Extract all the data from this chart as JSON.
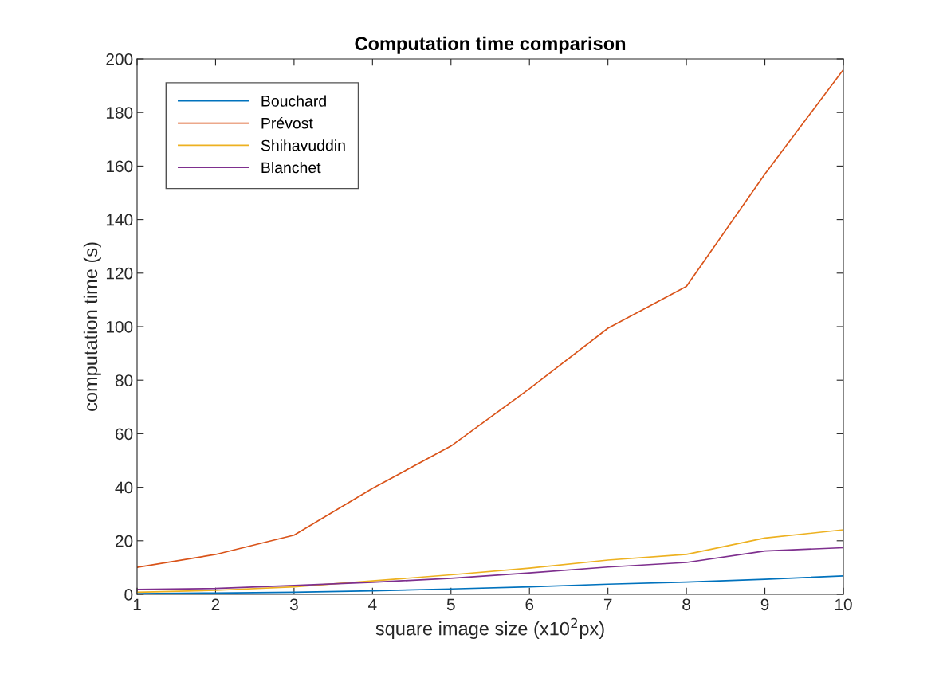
{
  "chart_data": {
    "type": "line",
    "title": "Computation time comparison",
    "xlabel": "square image size (x10$^{2}$px)",
    "ylabel": "computation time (s)",
    "x": [
      1,
      2,
      3,
      4,
      5,
      6,
      7,
      8,
      9,
      10
    ],
    "series": [
      {
        "name": "Bouchard",
        "color": "#0072bd",
        "values": [
          0.3,
          0.5,
          0.8,
          1.3,
          2.0,
          2.8,
          3.8,
          4.6,
          5.6,
          6.9
        ]
      },
      {
        "name": "Prévost",
        "color": "#d95319",
        "values": [
          10.1,
          14.9,
          22.1,
          39.6,
          55.4,
          76.8,
          99.4,
          115,
          157,
          196
        ]
      },
      {
        "name": "Shihavuddin",
        "color": "#edb120",
        "values": [
          0.8,
          1.5,
          2.8,
          5.0,
          7.3,
          9.8,
          12.8,
          14.9,
          21,
          24.1
        ]
      },
      {
        "name": "Blanchet",
        "color": "#7e2f8e",
        "values": [
          1.8,
          2.2,
          3.3,
          4.5,
          6.0,
          8.0,
          10.2,
          11.9,
          16.2,
          17.4
        ]
      }
    ],
    "xlim": [
      1,
      10
    ],
    "xticks": [
      1,
      2,
      3,
      4,
      5,
      6,
      7,
      8,
      9,
      10
    ],
    "ylim": [
      0,
      200
    ],
    "yticks": [
      0,
      20,
      40,
      60,
      80,
      100,
      120,
      140,
      160,
      180,
      200
    ],
    "legend": "top left",
    "grid": false,
    "marker": "none",
    "line_style": "solid"
  }
}
